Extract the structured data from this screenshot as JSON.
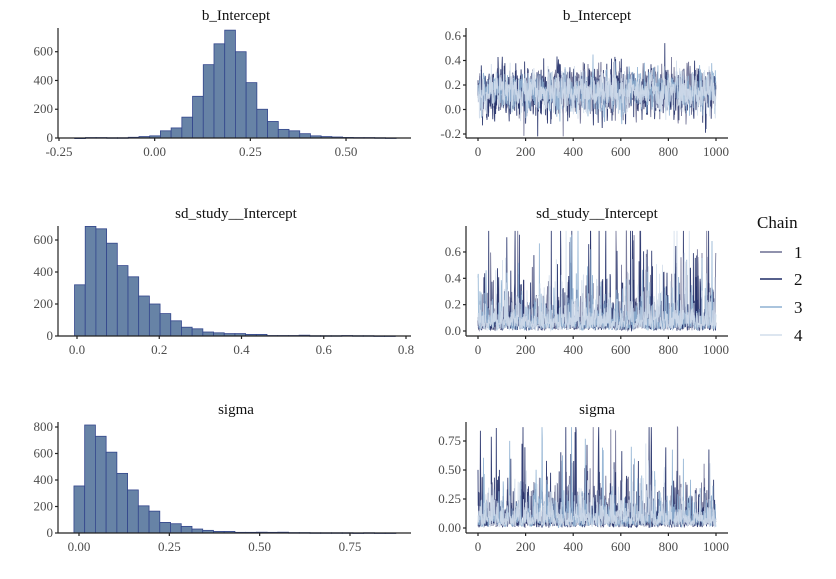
{
  "chart_data": [
    {
      "type": "bar",
      "subtype": "histogram",
      "title": "b_Intercept",
      "bin_start": -0.209,
      "bin_width": 0.028,
      "values": [
        0,
        3,
        3,
        2,
        2,
        5,
        10,
        15,
        50,
        70,
        145,
        290,
        510,
        655,
        750,
        600,
        385,
        200,
        115,
        60,
        50,
        30,
        15,
        10,
        7,
        4,
        3,
        3,
        2,
        1
      ],
      "xticks": [
        -0.25,
        0.0,
        0.25,
        0.5
      ],
      "xtick_labels": [
        "-0.25",
        "0.00",
        "0.25",
        "0.50"
      ],
      "yticks": [
        0,
        200,
        400,
        600
      ],
      "ylim": [
        0,
        760
      ]
    },
    {
      "type": "line",
      "subtype": "trace",
      "title": "b_Intercept",
      "iterations": 1000,
      "center": 0.15,
      "spread": 0.085,
      "transform": "identity",
      "xticks": [
        0,
        200,
        400,
        600,
        800,
        1000
      ],
      "yticks": [
        -0.2,
        0.0,
        0.2,
        0.4,
        0.6
      ],
      "ytick_labels": [
        "-0.2",
        "0.0",
        "0.2",
        "0.4",
        "0.6"
      ],
      "ylim": [
        -0.22,
        0.62
      ]
    },
    {
      "type": "bar",
      "subtype": "histogram",
      "title": "sd_study__Intercept",
      "bin_start": -0.006,
      "bin_width": 0.026,
      "values": [
        320,
        685,
        670,
        580,
        440,
        370,
        250,
        200,
        140,
        95,
        55,
        45,
        25,
        20,
        15,
        15,
        10,
        10,
        3,
        3,
        3,
        5,
        2,
        2,
        2,
        3,
        2,
        2,
        1,
        1
      ],
      "xticks": [
        0.0,
        0.2,
        0.4,
        0.6,
        0.8
      ],
      "xtick_labels": [
        "0.0",
        "0.2",
        "0.4",
        "0.6",
        "0.8"
      ],
      "yticks": [
        0,
        200,
        400,
        600
      ],
      "ylim": [
        0,
        690
      ]
    },
    {
      "type": "line",
      "subtype": "trace",
      "title": "sd_study__Intercept",
      "iterations": 1000,
      "center": 0.07,
      "spread": 0.85,
      "transform": "lognormal",
      "xticks": [
        0,
        200,
        400,
        600,
        800,
        1000
      ],
      "yticks": [
        0.0,
        0.2,
        0.4,
        0.6
      ],
      "ytick_labels": [
        "0.0",
        "0.2",
        "0.4",
        "0.6"
      ],
      "ylim": [
        0,
        0.76
      ]
    },
    {
      "type": "bar",
      "subtype": "histogram",
      "title": "sigma",
      "bin_start": -0.014,
      "bin_width": 0.0297,
      "values": [
        355,
        815,
        730,
        610,
        450,
        325,
        205,
        165,
        80,
        70,
        50,
        30,
        20,
        12,
        12,
        5,
        5,
        6,
        5,
        6,
        3,
        3,
        2,
        2,
        2,
        2,
        1,
        2,
        1,
        1
      ],
      "xticks": [
        0.0,
        0.25,
        0.5,
        0.75
      ],
      "xtick_labels": [
        "0.00",
        "0.25",
        "0.50",
        "0.75"
      ],
      "yticks": [
        0,
        200,
        400,
        600,
        800
      ],
      "ylim": [
        0,
        820
      ]
    },
    {
      "type": "line",
      "subtype": "trace",
      "title": "sigma",
      "iterations": 1000,
      "center": 0.08,
      "spread": 0.8,
      "transform": "lognormal",
      "xticks": [
        0,
        200,
        400,
        600,
        800,
        1000
      ],
      "yticks": [
        0.0,
        0.25,
        0.5,
        0.75
      ],
      "ytick_labels": [
        "0.00",
        "0.25",
        "0.50",
        "0.75"
      ],
      "ylim": [
        0,
        0.87
      ]
    }
  ],
  "legend": {
    "title": "Chain",
    "position": "right",
    "items": [
      {
        "label": "1",
        "color": "#6b6e92"
      },
      {
        "label": "2",
        "color": "#1f2b66"
      },
      {
        "label": "3",
        "color": "#8eb0d2"
      },
      {
        "label": "4",
        "color": "#d2ddeb"
      }
    ]
  },
  "colors": {
    "hist_fill": "#6783a6",
    "hist_stroke": "#33468c"
  }
}
